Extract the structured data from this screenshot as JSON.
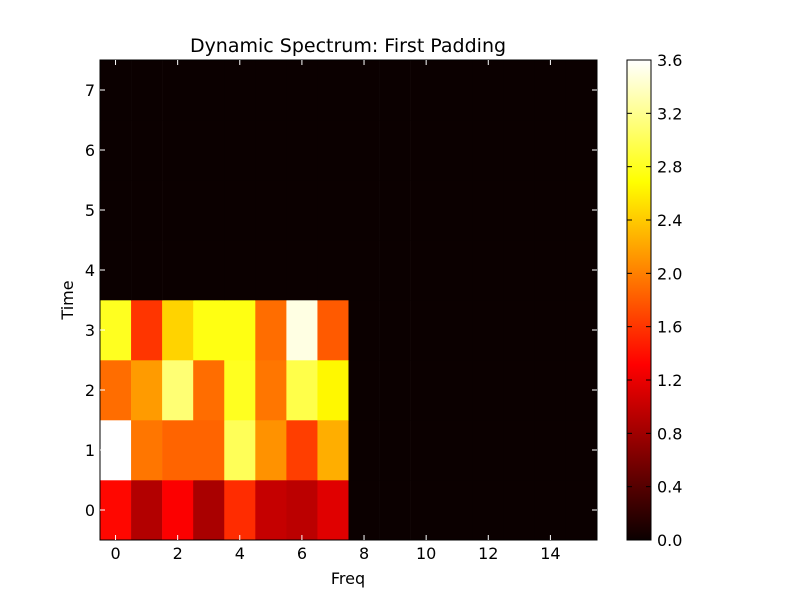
{
  "chart_data": {
    "type": "heatmap",
    "title": "Dynamic Spectrum: First Padding",
    "xlabel": "Freq",
    "ylabel": "Time",
    "colormap": "hot",
    "x_range": [
      -0.5,
      15.5
    ],
    "y_range": [
      -0.5,
      7.5
    ],
    "x_ticks": [
      0,
      2,
      4,
      6,
      8,
      10,
      12,
      14
    ],
    "y_ticks": [
      0,
      1,
      2,
      3,
      4,
      5,
      6,
      7
    ],
    "color_range": [
      0.0,
      3.6
    ],
    "colorbar_ticks": [
      "0.0",
      "0.4",
      "0.8",
      "1.2",
      "1.6",
      "2.0",
      "2.4",
      "2.8",
      "3.2",
      "3.6"
    ],
    "grid": false,
    "rows_bottom_to_top": [
      [
        1.35,
        0.9,
        1.3,
        0.85,
        1.55,
        1.0,
        0.95,
        1.15,
        0,
        0,
        0,
        0,
        0,
        0,
        0,
        0
      ],
      [
        3.6,
        1.95,
        1.85,
        1.85,
        3.0,
        2.1,
        1.65,
        2.25,
        0,
        0,
        0,
        0,
        0,
        0,
        0,
        0
      ],
      [
        1.9,
        2.15,
        3.1,
        1.9,
        2.8,
        1.95,
        2.95,
        2.65,
        0,
        0,
        0,
        0,
        0,
        0,
        0,
        0
      ],
      [
        2.8,
        1.6,
        2.45,
        2.75,
        2.75,
        1.9,
        3.5,
        1.8,
        0,
        0,
        0,
        0,
        0,
        0,
        0,
        0
      ],
      [
        0,
        0,
        0,
        0,
        0,
        0,
        0,
        0,
        0,
        0,
        0,
        0,
        0,
        0,
        0,
        0
      ],
      [
        0,
        0,
        0,
        0,
        0,
        0,
        0,
        0,
        0,
        0,
        0,
        0,
        0,
        0,
        0,
        0
      ],
      [
        0,
        0,
        0,
        0,
        0,
        0,
        0,
        0,
        0,
        0,
        0,
        0,
        0,
        0,
        0,
        0
      ],
      [
        0,
        0,
        0,
        0,
        0,
        0,
        0,
        0,
        0,
        0,
        0,
        0,
        0,
        0,
        0,
        0
      ]
    ]
  }
}
